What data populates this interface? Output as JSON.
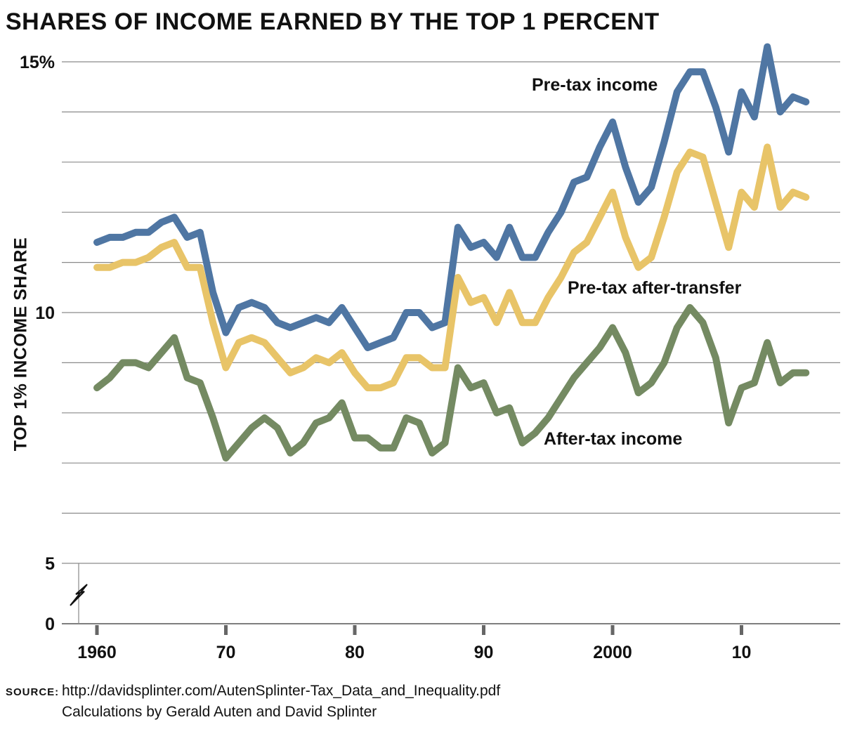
{
  "chart_data": {
    "type": "line",
    "title": "SHARES OF INCOME EARNED BY THE TOP 1 PERCENT",
    "ylabel": "TOP 1% INCOME SHARE",
    "xlabel": "",
    "y_tick_labels": [
      "15%",
      "10",
      "5",
      "0"
    ],
    "y_tick_values": [
      15,
      10,
      5,
      0
    ],
    "y_axis_break": true,
    "x_tick_labels": [
      "1960",
      "70",
      "80",
      "90",
      "2000",
      "10"
    ],
    "x_tick_values": [
      1960,
      1970,
      1980,
      1990,
      2000,
      2010
    ],
    "xlim": [
      1958.5,
      2016.5
    ],
    "ylim": [
      0,
      15.5
    ],
    "grid": true,
    "x": [
      1960,
      1961,
      1962,
      1963,
      1964,
      1965,
      1966,
      1967,
      1968,
      1969,
      1970,
      1971,
      1972,
      1973,
      1974,
      1975,
      1976,
      1977,
      1978,
      1979,
      1980,
      1981,
      1982,
      1983,
      1984,
      1985,
      1986,
      1987,
      1988,
      1989,
      1990,
      1991,
      1992,
      1993,
      1994,
      1995,
      1996,
      1997,
      1998,
      1999,
      2000,
      2001,
      2002,
      2003,
      2004,
      2005,
      2006,
      2007,
      2008,
      2009,
      2010,
      2011,
      2012,
      2013,
      2014,
      2015
    ],
    "series": [
      {
        "name": "Pre-tax income",
        "color": "#4f76a3",
        "values": [
          11.4,
          11.5,
          11.5,
          11.6,
          11.6,
          11.8,
          11.9,
          11.5,
          11.6,
          10.4,
          9.6,
          10.1,
          10.2,
          10.1,
          9.8,
          9.7,
          9.8,
          9.9,
          9.8,
          10.1,
          9.7,
          9.3,
          9.4,
          9.5,
          10.0,
          10.0,
          9.7,
          9.8,
          11.7,
          11.3,
          11.4,
          11.1,
          11.7,
          11.1,
          11.1,
          11.6,
          12.0,
          12.6,
          12.7,
          13.3,
          13.8,
          12.9,
          12.2,
          12.5,
          13.4,
          14.4,
          14.8,
          14.8,
          14.1,
          13.2,
          14.4,
          13.9,
          15.3,
          14.0,
          14.3,
          14.2
        ]
      },
      {
        "name": "Pre-tax after-transfer",
        "color": "#e8c468",
        "values": [
          10.9,
          10.9,
          11.0,
          11.0,
          11.1,
          11.3,
          11.4,
          10.9,
          10.9,
          9.8,
          8.9,
          9.4,
          9.5,
          9.4,
          9.1,
          8.8,
          8.9,
          9.1,
          9.0,
          9.2,
          8.8,
          8.5,
          8.5,
          8.6,
          9.1,
          9.1,
          8.9,
          8.9,
          10.7,
          10.2,
          10.3,
          9.8,
          10.4,
          9.8,
          9.8,
          10.3,
          10.7,
          11.2,
          11.4,
          11.9,
          12.4,
          11.5,
          10.9,
          11.1,
          11.9,
          12.8,
          13.2,
          13.1,
          12.2,
          11.3,
          12.4,
          12.1,
          13.3,
          12.1,
          12.4,
          12.3
        ]
      },
      {
        "name": "After-tax income",
        "color": "#748a62",
        "values": [
          8.5,
          8.7,
          9.0,
          9.0,
          8.9,
          9.2,
          9.5,
          8.7,
          8.6,
          7.9,
          7.1,
          7.4,
          7.7,
          7.9,
          7.7,
          7.2,
          7.4,
          7.8,
          7.9,
          8.2,
          7.5,
          7.5,
          7.3,
          7.3,
          7.9,
          7.8,
          7.2,
          7.4,
          8.9,
          8.5,
          8.6,
          8.0,
          8.1,
          7.4,
          7.6,
          7.9,
          8.3,
          8.7,
          9.0,
          9.3,
          9.7,
          9.2,
          8.4,
          8.6,
          9.0,
          9.7,
          10.1,
          9.8,
          9.1,
          7.8,
          8.5,
          8.6,
          9.4,
          8.6,
          8.8,
          8.8
        ]
      }
    ]
  },
  "source": {
    "label": "SOURCE:",
    "url": "http://davidsplinter.com/AutenSplinter-Tax_Data_and_Inequality.pdf",
    "credit": "Calculations by Gerald Auten and David Splinter"
  }
}
